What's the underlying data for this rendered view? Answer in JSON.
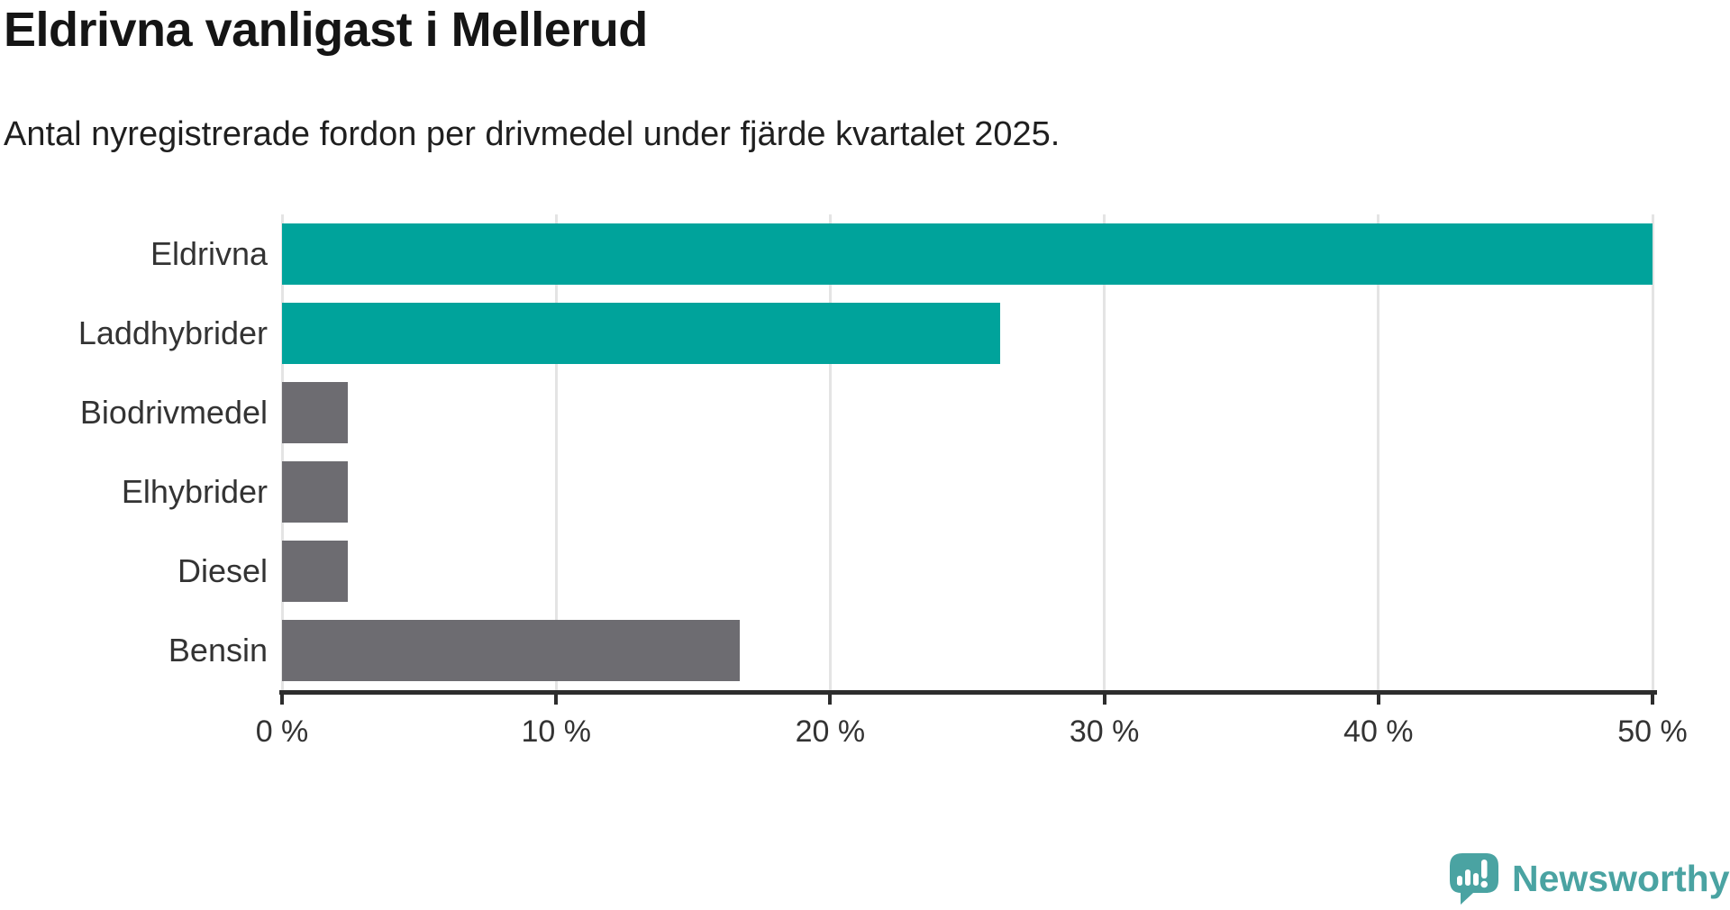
{
  "header": {
    "title": "Eldrivna vanligast i Mellerud",
    "subtitle": "Antal nyregistrerade fordon per drivmedel under fjärde kvartalet 2025."
  },
  "chart_data": {
    "type": "bar",
    "orientation": "horizontal",
    "title": "Eldrivna vanligast i Mellerud",
    "subtitle": "Antal nyregistrerade fordon per drivmedel under fjärde kvartalet 2025.",
    "categories": [
      "Eldrivna",
      "Laddhybrider",
      "Biodrivmedel",
      "Elhybrider",
      "Diesel",
      "Bensin"
    ],
    "values": [
      50.0,
      26.2,
      2.4,
      2.4,
      2.4,
      16.7
    ],
    "unit": "%",
    "xlim": [
      0,
      50
    ],
    "x_tick_values": [
      0,
      10,
      20,
      30,
      40,
      50
    ],
    "x_tick_labels": [
      "0 %",
      "10 %",
      "20 %",
      "30 %",
      "40 %",
      "50 %"
    ],
    "grid": "vertical-gridlines-on",
    "legend": "none",
    "bar_colors": [
      "#00a39b",
      "#00a39b",
      "#6d6c71",
      "#6d6c71",
      "#6d6c71",
      "#6d6c71"
    ],
    "colors": {
      "highlight": "#00a39b",
      "muted": "#6d6c71",
      "gridline": "#e4e4e4",
      "axis": "#2d2d2d",
      "label_text": "#333333"
    }
  },
  "logo": {
    "label": "Newsworthy",
    "icon": "newsworthy-logo-icon",
    "color": "#4aa3a2"
  }
}
